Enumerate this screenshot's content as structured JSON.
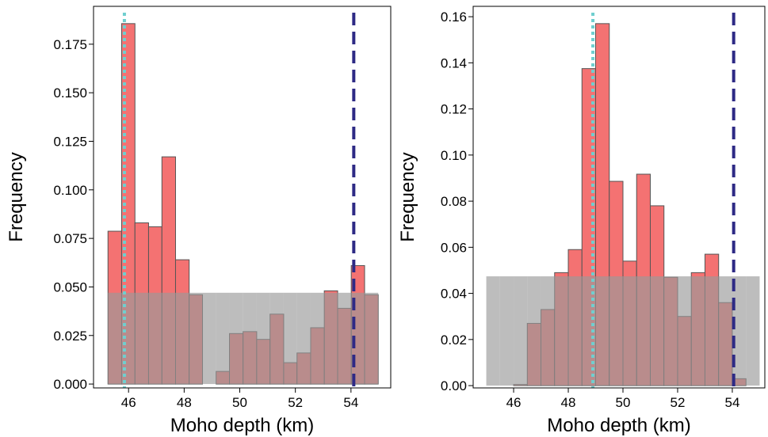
{
  "chart_data": [
    {
      "type": "histogram",
      "xlabel": "Moho depth (km)",
      "ylabel": "Frequency",
      "xlim": [
        44.74,
        55.43
      ],
      "ylim": [
        -0.002,
        0.1945
      ],
      "xticks": [
        46,
        48,
        50,
        52,
        54
      ],
      "yticks": [
        {
          "value": 0,
          "label": "0.000"
        },
        0.025,
        {
          "value": 0.05,
          "label": "0.050"
        },
        0.075,
        {
          "value": 0.1,
          "label": "0.100"
        },
        0.125,
        {
          "value": 0.15,
          "label": "0.150"
        },
        0.175
      ],
      "bins": [
        45.26,
        45.75,
        46.23,
        46.72,
        47.2,
        47.69,
        48.18,
        48.66,
        49.15,
        49.63,
        50.12,
        50.61,
        51.09,
        51.58,
        52.06,
        52.55,
        53.04,
        53.52,
        54.01,
        54.49,
        54.98
      ],
      "series": [
        {
          "color": "#f47272",
          "values": [
            0.0787,
            0.1856,
            0.083,
            0.081,
            0.117,
            0.064,
            0.046,
            0,
            0.0065,
            0.026,
            0.027,
            0.023,
            0.036,
            0.011,
            0.016,
            0.029,
            0.048,
            0.039,
            0.061,
            0.046
          ]
        },
        {
          "color": "#9a9a9a",
          "values": [
            0.047,
            0.047,
            0.047,
            0.047,
            0.047,
            0.047,
            0.047,
            0.047,
            0.047,
            0.047,
            0.047,
            0.047,
            0.047,
            0.047,
            0.047,
            0.047,
            0.047,
            0.047,
            0.047,
            0.047
          ]
        }
      ],
      "vlines": [
        {
          "x": 45.85,
          "color": "#6fcfcf",
          "style": "dotted"
        },
        {
          "x": 54.1,
          "color": "#2e2a85",
          "style": "dashed"
        }
      ]
    },
    {
      "type": "histogram",
      "xlabel": "Moho depth (km)",
      "ylabel": "Frequency",
      "xlim": [
        44.52,
        55.19
      ],
      "ylim": [
        -0.001,
        0.1645
      ],
      "xticks": [
        46,
        48,
        50,
        52,
        54
      ],
      "yticks": [
        {
          "value": 0,
          "label": "0.00"
        },
        0.02,
        0.04,
        0.06,
        0.08,
        {
          "value": 0.1,
          "label": "0.10"
        },
        0.12,
        0.14,
        0.16
      ],
      "bins": [
        45,
        45.5,
        46,
        46.5,
        47,
        47.5,
        48,
        48.5,
        49,
        49.5,
        50,
        50.5,
        51,
        51.5,
        52,
        52.5,
        53,
        53.5,
        54,
        54.5,
        55
      ],
      "series": [
        {
          "color": "#f47272",
          "values": [
            0,
            0,
            0.0005,
            0.027,
            0.033,
            0.049,
            0.059,
            0.1375,
            0.157,
            0.0886,
            0.054,
            0.0917,
            0.078,
            0.047,
            0.03,
            0.049,
            0.057,
            0.036,
            0.003,
            0
          ]
        },
        {
          "color": "#9a9a9a",
          "values": [
            0.0474,
            0.0474,
            0.0474,
            0.0474,
            0.0474,
            0.0474,
            0.0474,
            0.0474,
            0.0474,
            0.0474,
            0.0474,
            0.0474,
            0.0474,
            0.0474,
            0.0474,
            0.0474,
            0.0474,
            0.0474,
            0.0474,
            0.0474
          ]
        }
      ],
      "vlines": [
        {
          "x": 48.9,
          "color": "#6fcfcf",
          "style": "dotted"
        },
        {
          "x": 54.05,
          "color": "#2e2a85",
          "style": "dashed"
        }
      ]
    }
  ]
}
